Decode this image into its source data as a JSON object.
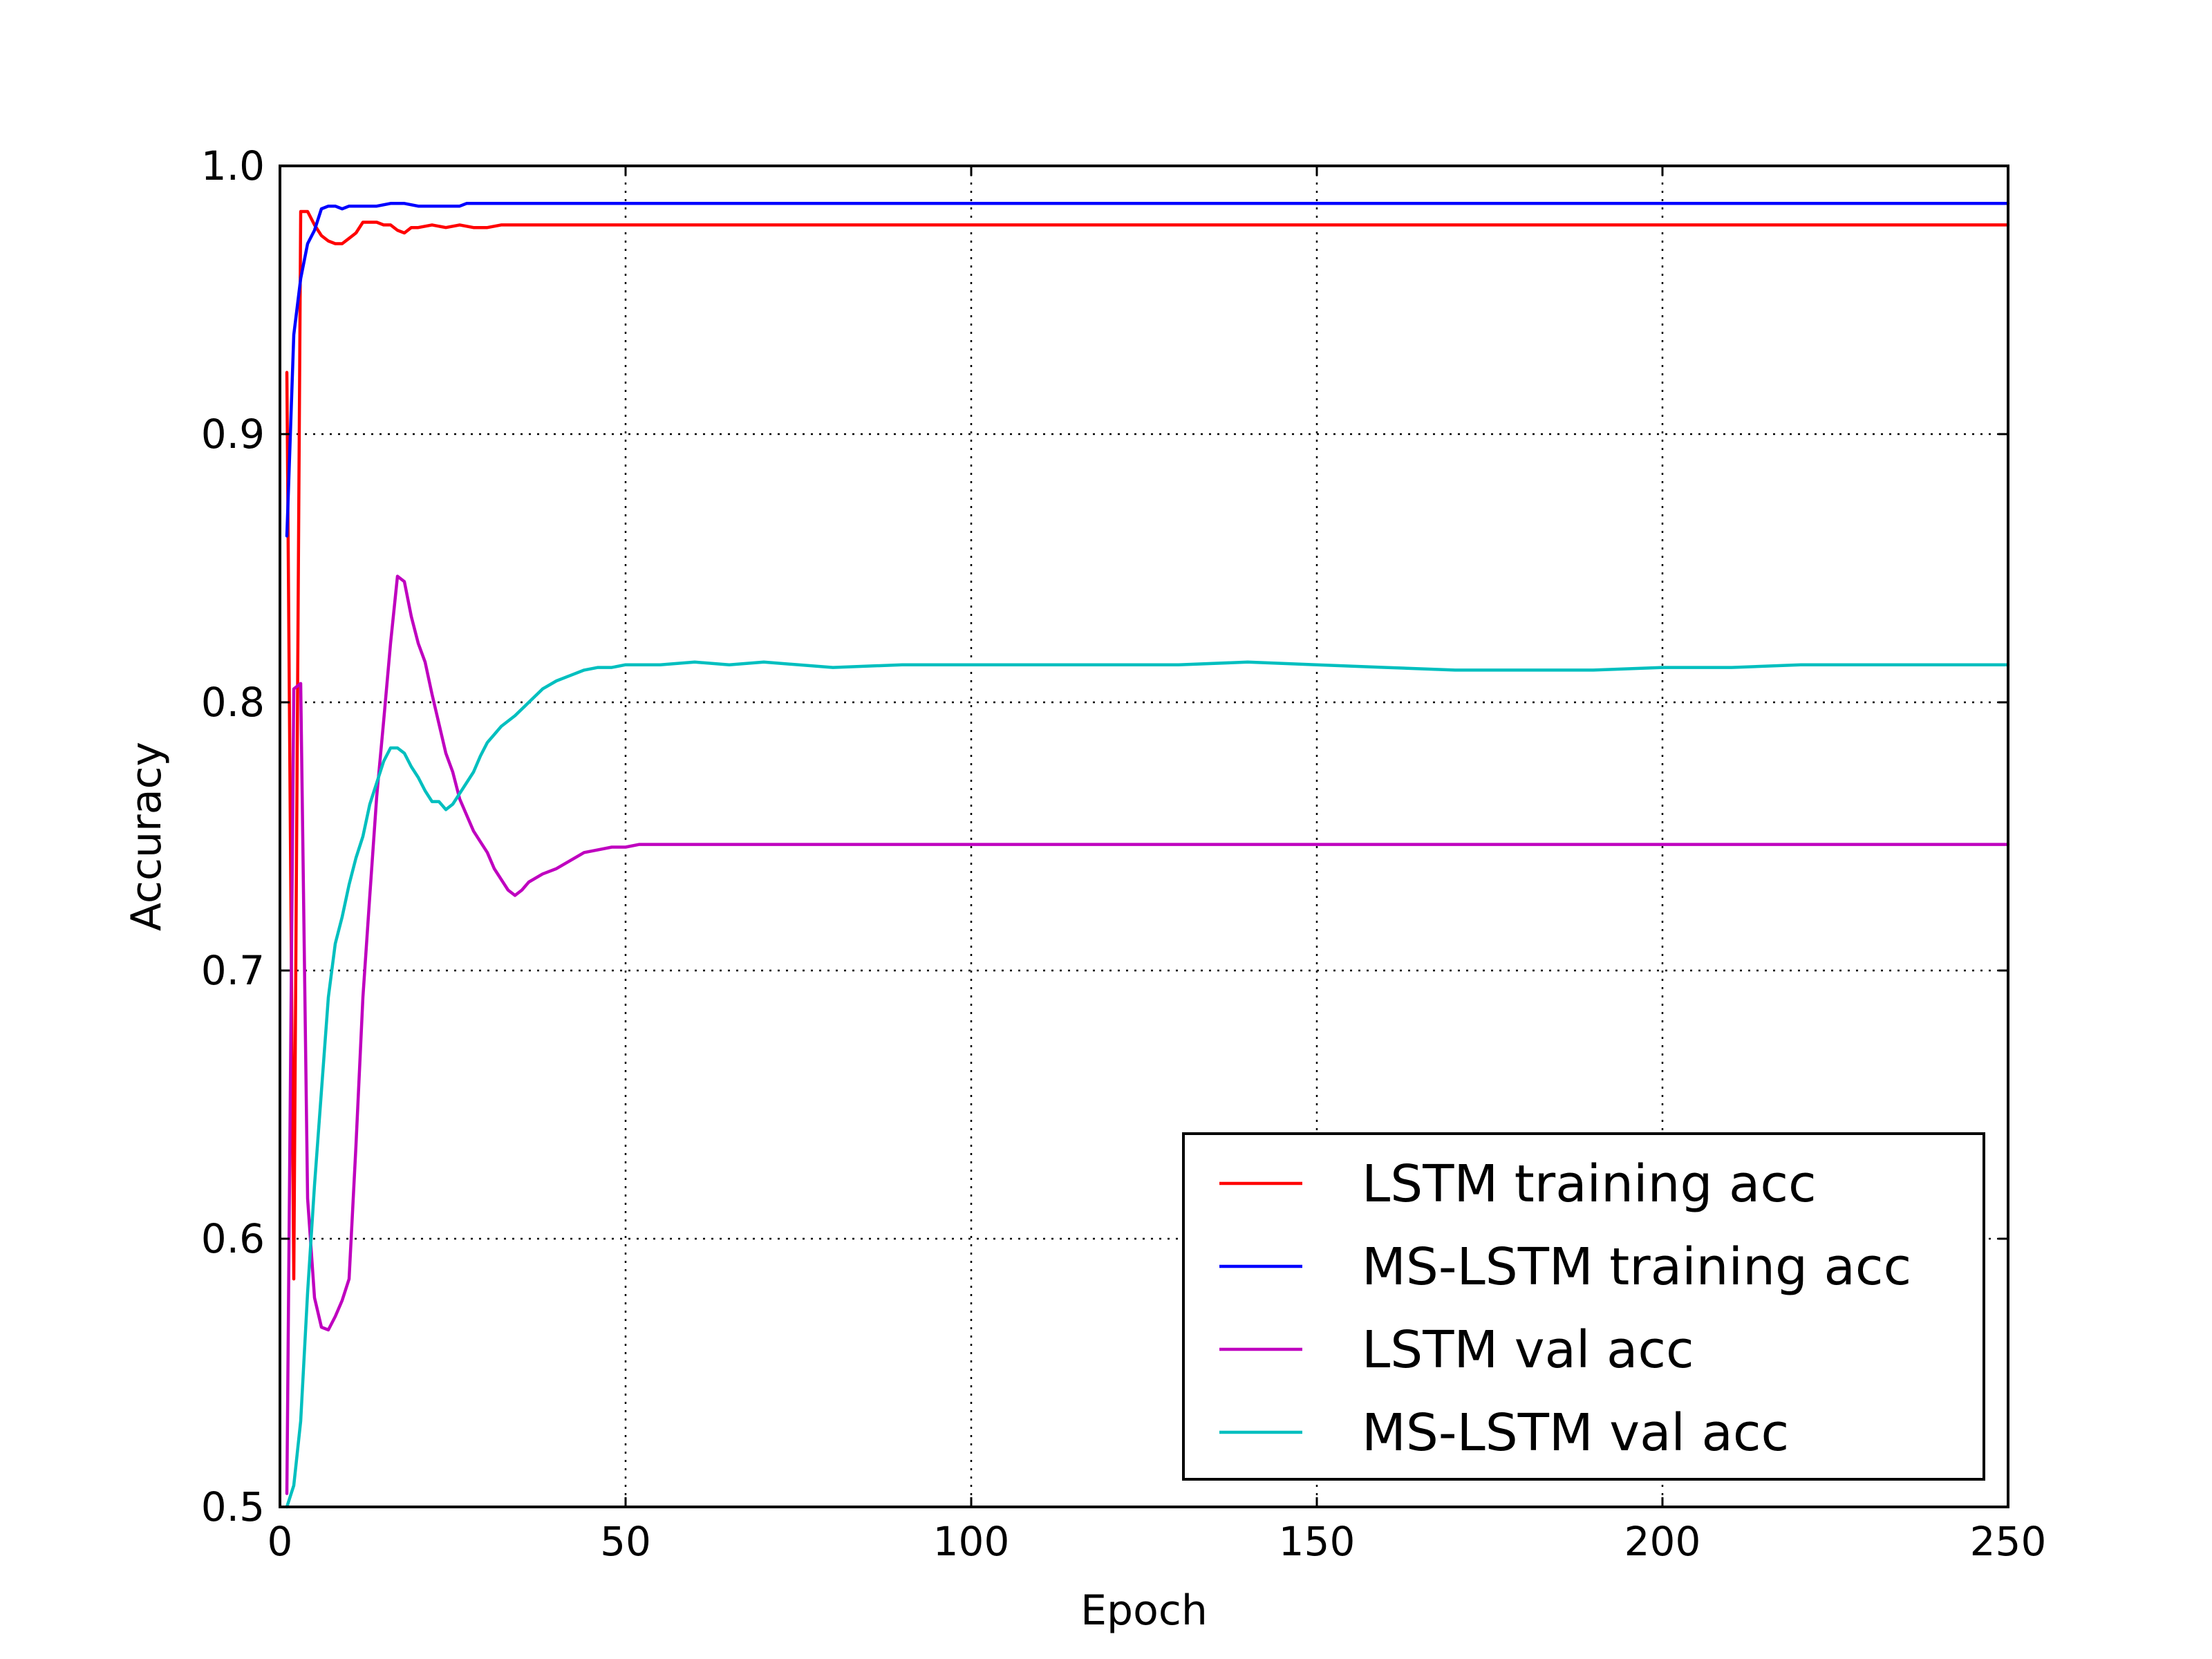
{
  "chart_data": {
    "type": "line",
    "title": "",
    "xlabel": "Epoch",
    "ylabel": "Accuracy",
    "xlim": [
      0,
      250
    ],
    "ylim": [
      0.5,
      1.0
    ],
    "xticks": [
      0,
      50,
      100,
      150,
      200,
      250
    ],
    "yticks": [
      0.5,
      0.6,
      0.7,
      0.8,
      0.9,
      1.0
    ],
    "xtick_labels": [
      "0",
      "50",
      "100",
      "150",
      "200",
      "250"
    ],
    "ytick_labels": [
      "0.5",
      "0.6",
      "0.7",
      "0.8",
      "0.9",
      "1.0"
    ],
    "grid": true,
    "legend_position": "lower-right",
    "series": [
      {
        "name": "LSTM training acc",
        "color": "#ff0000",
        "x": [
          1,
          2,
          3,
          4,
          5,
          6,
          7,
          8,
          9,
          10,
          11,
          12,
          13,
          14,
          15,
          16,
          17,
          18,
          19,
          20,
          22,
          24,
          26,
          28,
          30,
          32,
          40,
          60,
          100,
          150,
          200,
          250
        ],
        "y": [
          0.923,
          0.585,
          0.983,
          0.983,
          0.978,
          0.974,
          0.972,
          0.971,
          0.971,
          0.973,
          0.975,
          0.979,
          0.979,
          0.979,
          0.978,
          0.978,
          0.976,
          0.975,
          0.977,
          0.977,
          0.978,
          0.977,
          0.978,
          0.977,
          0.977,
          0.978,
          0.978,
          0.978,
          0.978,
          0.978,
          0.978,
          0.978
        ]
      },
      {
        "name": "MS-LSTM training acc",
        "color": "#0000ff",
        "x": [
          1,
          2,
          3,
          4,
          5,
          6,
          7,
          8,
          9,
          10,
          12,
          14,
          16,
          18,
          20,
          22,
          24,
          26,
          27,
          30,
          40,
          60,
          100,
          150,
          200,
          250
        ],
        "y": [
          0.862,
          0.937,
          0.958,
          0.971,
          0.976,
          0.984,
          0.985,
          0.985,
          0.984,
          0.985,
          0.985,
          0.985,
          0.986,
          0.986,
          0.985,
          0.985,
          0.985,
          0.985,
          0.986,
          0.986,
          0.986,
          0.986,
          0.986,
          0.986,
          0.986,
          0.986
        ]
      },
      {
        "name": "LSTM val acc",
        "color": "#bf00bf",
        "x": [
          1,
          2,
          3,
          4,
          5,
          6,
          7,
          8,
          9,
          10,
          11,
          12,
          13,
          14,
          15,
          16,
          17,
          18,
          19,
          20,
          21,
          22,
          23,
          24,
          25,
          26,
          27,
          28,
          29,
          30,
          31,
          32,
          33,
          34,
          35,
          36,
          38,
          40,
          42,
          44,
          46,
          48,
          50,
          52,
          54,
          60,
          100,
          150,
          200,
          250
        ],
        "y": [
          0.505,
          0.805,
          0.807,
          0.615,
          0.578,
          0.567,
          0.566,
          0.571,
          0.577,
          0.585,
          0.635,
          0.69,
          0.728,
          0.765,
          0.793,
          0.822,
          0.847,
          0.845,
          0.832,
          0.822,
          0.815,
          0.803,
          0.792,
          0.781,
          0.774,
          0.764,
          0.758,
          0.752,
          0.748,
          0.744,
          0.738,
          0.734,
          0.73,
          0.728,
          0.73,
          0.733,
          0.736,
          0.738,
          0.741,
          0.744,
          0.745,
          0.746,
          0.746,
          0.747,
          0.747,
          0.747,
          0.747,
          0.747,
          0.747,
          0.747
        ]
      },
      {
        "name": "MS-LSTM val acc",
        "color": "#00bfbf",
        "x": [
          1,
          2,
          3,
          4,
          5,
          6,
          7,
          8,
          9,
          10,
          11,
          12,
          13,
          14,
          15,
          16,
          17,
          18,
          19,
          20,
          21,
          22,
          23,
          24,
          25,
          26,
          27,
          28,
          29,
          30,
          31,
          32,
          34,
          36,
          38,
          40,
          42,
          44,
          46,
          48,
          50,
          55,
          60,
          65,
          70,
          80,
          90,
          100,
          110,
          120,
          130,
          140,
          150,
          160,
          170,
          180,
          190,
          200,
          210,
          220,
          230,
          240,
          250
        ],
        "y": [
          0.5,
          0.508,
          0.532,
          0.58,
          0.62,
          0.655,
          0.69,
          0.71,
          0.72,
          0.732,
          0.742,
          0.75,
          0.762,
          0.77,
          0.778,
          0.783,
          0.783,
          0.781,
          0.776,
          0.772,
          0.767,
          0.763,
          0.763,
          0.76,
          0.762,
          0.766,
          0.77,
          0.774,
          0.78,
          0.785,
          0.788,
          0.791,
          0.795,
          0.8,
          0.805,
          0.808,
          0.81,
          0.812,
          0.813,
          0.813,
          0.814,
          0.814,
          0.815,
          0.814,
          0.815,
          0.813,
          0.814,
          0.814,
          0.814,
          0.814,
          0.814,
          0.815,
          0.814,
          0.813,
          0.812,
          0.812,
          0.812,
          0.813,
          0.813,
          0.814,
          0.814,
          0.814,
          0.814
        ]
      }
    ]
  }
}
